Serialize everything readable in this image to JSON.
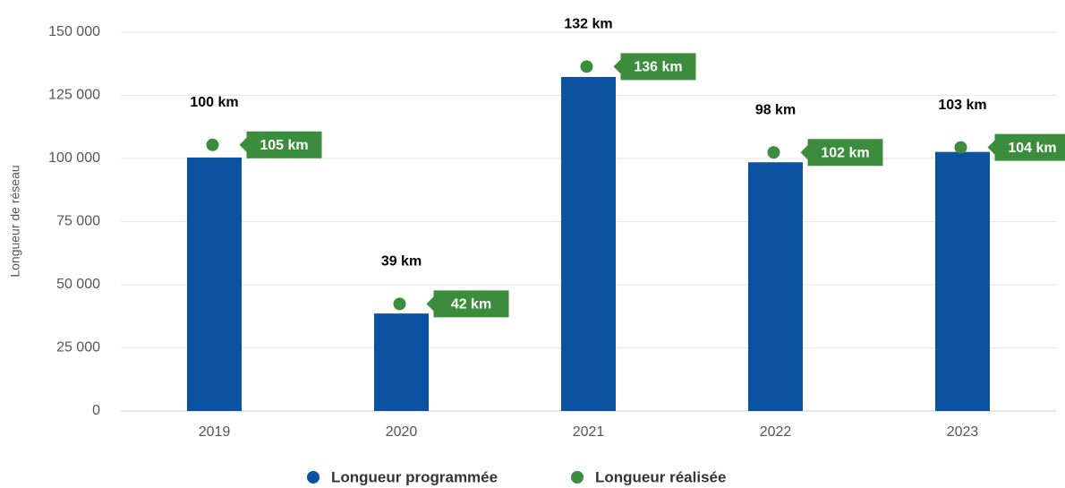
{
  "chart_data": {
    "type": "bar",
    "y_label": "Longueur de réseau",
    "categories": [
      "2019",
      "2020",
      "2021",
      "2022",
      "2023"
    ],
    "series": [
      {
        "name": "Longueur programmée",
        "type": "bar",
        "color": "#0b52a1",
        "values": [
          100400,
          38600,
          132300,
          98500,
          102600
        ],
        "value_labels": [
          "100 km",
          "39 km",
          "132 km",
          "98 km",
          "103 km"
        ]
      },
      {
        "name": "Longueur réalisée",
        "type": "dot",
        "color": "#3c8c3e",
        "values": [
          105400,
          42400,
          136400,
          102400,
          104400
        ],
        "value_labels": [
          "105 km",
          "42 km",
          "136 km",
          "102 km",
          "104 km"
        ]
      }
    ],
    "ylim": [
      0,
      150000
    ],
    "yticks": [
      0,
      {
        "value": 25000,
        "label": "25 000"
      },
      {
        "value": 50000,
        "label": "50 000"
      },
      {
        "value": 75000,
        "label": "75 000"
      },
      {
        "value": 100000,
        "label": "100 000"
      },
      {
        "value": 125000,
        "label": "125 000"
      },
      {
        "value": 150000,
        "label": "150 000"
      }
    ],
    "grid": true,
    "legend": "bottom"
  }
}
